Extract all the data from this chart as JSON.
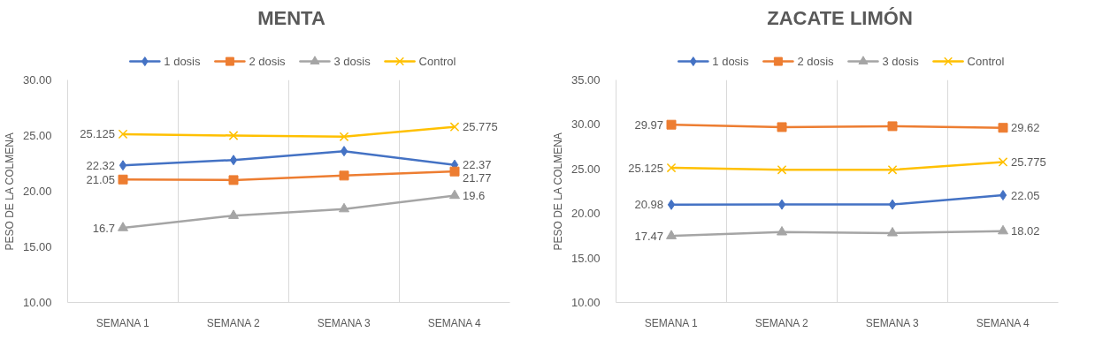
{
  "chart_data": [
    {
      "type": "line",
      "title": "MENTA",
      "ylabel": "PESO DE LA COLMENA",
      "categories": [
        "SEMANA 1",
        "SEMANA 2",
        "SEMANA 3",
        "SEMANA 4"
      ],
      "ylim": [
        10,
        30
      ],
      "yticks": [
        {
          "value": 10,
          "label": "10.00"
        },
        {
          "value": 15,
          "label": "15.00"
        },
        {
          "value": 20,
          "label": "20.00"
        },
        {
          "value": 25,
          "label": "25.00"
        },
        {
          "value": 30,
          "label": "30.00"
        }
      ],
      "grid": "x",
      "legend": "top",
      "series": [
        {
          "name": "1 dosis",
          "color": "#4472c4",
          "marker": "diamond",
          "values": [
            22.32,
            22.8,
            23.6,
            22.37
          ],
          "value_labels": [
            "22.32",
            null,
            null,
            "22.37"
          ]
        },
        {
          "name": "2 dosis",
          "color": "#ed7d31",
          "marker": "square",
          "values": [
            21.05,
            21.0,
            21.4,
            21.77
          ],
          "value_labels": [
            "21.05",
            null,
            null,
            "21.77"
          ]
        },
        {
          "name": "3 dosis",
          "color": "#a5a5a5",
          "marker": "triangle",
          "values": [
            16.7,
            17.8,
            18.4,
            19.6
          ],
          "value_labels": [
            "16.7",
            null,
            null,
            "19.6"
          ]
        },
        {
          "name": "Control",
          "color": "#ffc000",
          "marker": "cross",
          "values": [
            25.125,
            25.0,
            24.9,
            25.775
          ],
          "value_labels": [
            "25.125",
            null,
            null,
            "25.775"
          ]
        }
      ]
    },
    {
      "type": "line",
      "title": "ZACATE LIMÓN",
      "ylabel": "PESO DE LA COLMENA",
      "categories": [
        "SEMANA 1",
        "SEMANA 2",
        "SEMANA 3",
        "SEMANA 4"
      ],
      "ylim": [
        10,
        35
      ],
      "yticks": [
        {
          "value": 10,
          "label": "10.00"
        },
        {
          "value": 15,
          "label": "15.00"
        },
        {
          "value": 20,
          "label": "20.00"
        },
        {
          "value": 25,
          "label": "25.00"
        },
        {
          "value": 30,
          "label": "30.00"
        },
        {
          "value": 35,
          "label": "35.00"
        }
      ],
      "grid": "x",
      "legend": "top",
      "series": [
        {
          "name": "1 dosis",
          "color": "#4472c4",
          "marker": "diamond",
          "values": [
            20.98,
            21.0,
            21.0,
            22.05
          ],
          "value_labels": [
            "20.98",
            null,
            null,
            "22.05"
          ]
        },
        {
          "name": "2 dosis",
          "color": "#ed7d31",
          "marker": "square",
          "values": [
            29.97,
            29.7,
            29.8,
            29.62
          ],
          "value_labels": [
            "29.97",
            null,
            null,
            "29.62"
          ]
        },
        {
          "name": "3 dosis",
          "color": "#a5a5a5",
          "marker": "triangle",
          "values": [
            17.47,
            17.9,
            17.8,
            18.02
          ],
          "value_labels": [
            "17.47",
            null,
            null,
            "18.02"
          ]
        },
        {
          "name": "Control",
          "color": "#ffc000",
          "marker": "cross",
          "values": [
            25.125,
            24.9,
            24.9,
            25.775
          ],
          "value_labels": [
            "25.125",
            null,
            null,
            "25.775"
          ]
        }
      ]
    }
  ]
}
